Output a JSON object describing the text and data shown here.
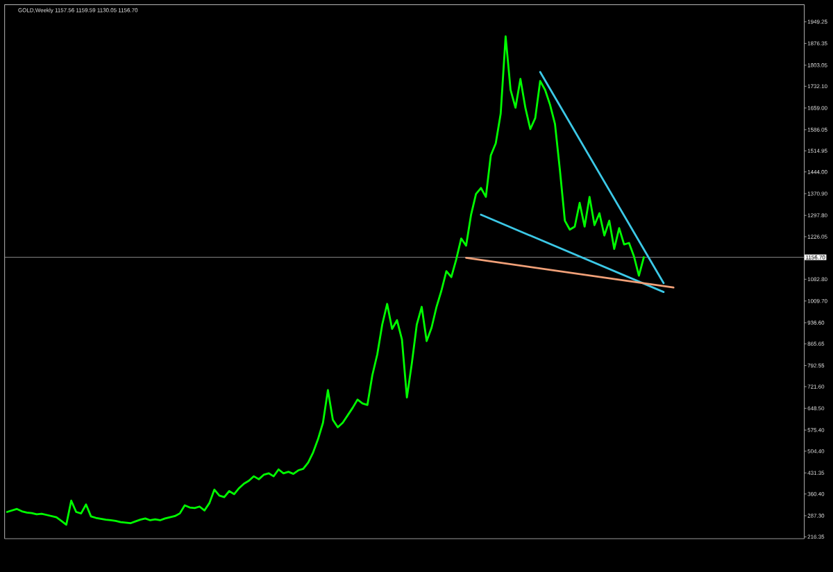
{
  "chart_data": {
    "type": "line",
    "title": "GOLD,Weekly 1157.56 1159.59 1130.05 1156.70",
    "categories": [
      null,
      null,
      null,
      null,
      null,
      null,
      null,
      null,
      null,
      null,
      null,
      null,
      null,
      null,
      null,
      null,
      null,
      null,
      null,
      null,
      null,
      null,
      null,
      null,
      null,
      null,
      null,
      null,
      null,
      null,
      null,
      null,
      null,
      null,
      null,
      null,
      null,
      null,
      null,
      null,
      null,
      null,
      null,
      null,
      null,
      null,
      null,
      null,
      null,
      null,
      null,
      null,
      null,
      null,
      null,
      null,
      null,
      null,
      null,
      null,
      null,
      null,
      null,
      null,
      null,
      null,
      null,
      null,
      null,
      null,
      null,
      null,
      null,
      null,
      null,
      null,
      null,
      null,
      null,
      null,
      null,
      null,
      null,
      null,
      null,
      null,
      null,
      null,
      null,
      null,
      null,
      null,
      null,
      null,
      null,
      null,
      null,
      null,
      null,
      null,
      null,
      null,
      null,
      null,
      null,
      null,
      null,
      null,
      null,
      null,
      null,
      null,
      null,
      null,
      null,
      null,
      null,
      null,
      null,
      null,
      null,
      null,
      null,
      null,
      null,
      null,
      null,
      null,
      null,
      null,
      null,
      null,
      null,
      null,
      null,
      null,
      null,
      null,
      null,
      null,
      null,
      null,
      null,
      null,
      null,
      null,
      null,
      null,
      null,
      null,
      null,
      null,
      null,
      null,
      null,
      null,
      null,
      null,
      null,
      null,
      null,
      null
    ],
    "ylim": [
      210,
      2007
    ],
    "yticks": [
      216.35,
      {
        "value": 287.3,
        "label": "287.30"
      },
      {
        "value": 360.4,
        "label": "360.40"
      },
      431.35,
      {
        "value": 504.4,
        "label": "504.40"
      },
      {
        "value": 575.4,
        "label": "575.40"
      },
      {
        "value": 648.5,
        "label": "648.50"
      },
      {
        "value": 721.6,
        "label": "721.60"
      },
      792.55,
      865.65,
      {
        "value": 936.6,
        "label": "936.60"
      },
      {
        "value": 1009.7,
        "label": "1009.70"
      },
      {
        "value": 1082.8,
        "label": "1082.80"
      },
      1226.05,
      {
        "value": 1297.8,
        "label": "1297.80"
      },
      {
        "value": 1370.9,
        "label": "1370.90"
      },
      {
        "value": 1444.0,
        "label": "1444.00"
      },
      1514.95,
      1586.05,
      {
        "value": 1659.0,
        "label": "1659.00"
      },
      {
        "value": 1732.1,
        "label": "1732.10"
      },
      1803.05,
      1876.35,
      1949.25
    ],
    "ref_lines": [
      {
        "axis": "y",
        "value": 1156.7,
        "label": "1156.70",
        "color": "#8c8c8c"
      }
    ],
    "series": [
      {
        "color": "#00ff00",
        "values": [
          300,
          305,
          310,
          302,
          298,
          296,
          292,
          294,
          290,
          286,
          282,
          270,
          257,
          338,
          300,
          295,
          325,
          285,
          280,
          277,
          274,
          272,
          270,
          266,
          264,
          262,
          268,
          274,
          278,
          272,
          275,
          272,
          278,
          282,
          286,
          295,
          322,
          315,
          313,
          318,
          305,
          330,
          375,
          355,
          350,
          370,
          360,
          380,
          395,
          405,
          420,
          410,
          425,
          430,
          420,
          443,
          430,
          435,
          428,
          440,
          445,
          466,
          500,
          545,
          600,
          710,
          610,
          585,
          600,
          625,
          650,
          678,
          665,
          660,
          760,
          830,
          930,
          1000,
          916,
          945,
          880,
          685,
          800,
          930,
          990,
          875,
          920,
          990,
          1045,
          1110,
          1090,
          1150,
          1220,
          1196,
          1300,
          1370,
          1390,
          1360,
          1500,
          1540,
          1640,
          1900,
          1720,
          1660,
          1757,
          1660,
          1588,
          1625,
          1750,
          1720,
          1670,
          1605,
          1450,
          1280,
          1250,
          1260,
          1340,
          1260,
          1360,
          1265,
          1305,
          1230,
          1280,
          1185,
          1255,
          1200,
          1205,
          1160,
          1095,
          1157,
          null,
          null,
          null,
          null,
          null,
          null,
          null,
          null,
          null,
          null,
          null,
          null,
          null,
          null,
          null,
          null,
          null,
          null,
          null,
          null,
          null,
          null,
          null,
          null,
          null,
          null,
          null,
          null,
          null,
          null,
          null,
          null
        ]
      },
      {
        "type": "line",
        "color": "#3cc8e6",
        "values": [
          null,
          null,
          null,
          null,
          null,
          null,
          null,
          null,
          null,
          null,
          null,
          null,
          null,
          null,
          null,
          null,
          null,
          null,
          null,
          null,
          null,
          null,
          null,
          null,
          null,
          null,
          null,
          null,
          null,
          null,
          null,
          null,
          null,
          null,
          null,
          null,
          null,
          null,
          null,
          null,
          null,
          null,
          null,
          null,
          null,
          null,
          null,
          null,
          null,
          null,
          null,
          null,
          null,
          null,
          null,
          null,
          null,
          null,
          null,
          null,
          null,
          null,
          null,
          null,
          null,
          null,
          null,
          null,
          null,
          null,
          null,
          null,
          null,
          null,
          null,
          null,
          null,
          null,
          null,
          null,
          null,
          null,
          null,
          null,
          null,
          null,
          null,
          null,
          null,
          null,
          null,
          null,
          null,
          null,
          null,
          null,
          null,
          null,
          null,
          null,
          null,
          null,
          null,
          null,
          null,
          null,
          null,
          null,
          1780,
          null,
          null,
          null,
          null,
          null,
          null,
          null,
          null,
          null,
          null,
          null,
          null,
          null,
          null,
          null,
          null,
          null,
          null,
          null,
          null,
          null,
          null,
          null,
          null,
          1070,
          null,
          null,
          null,
          null,
          null,
          null,
          null,
          null,
          null,
          null,
          null,
          null,
          null,
          null,
          null,
          null,
          null,
          null,
          null,
          null,
          null,
          null,
          null,
          null,
          null,
          null,
          null,
          null
        ]
      },
      {
        "type": "line",
        "color": "#3cc8e6",
        "values": [
          null,
          null,
          null,
          null,
          null,
          null,
          null,
          null,
          null,
          null,
          null,
          null,
          null,
          null,
          null,
          null,
          null,
          null,
          null,
          null,
          null,
          null,
          null,
          null,
          null,
          null,
          null,
          null,
          null,
          null,
          null,
          null,
          null,
          null,
          null,
          null,
          null,
          null,
          null,
          null,
          null,
          null,
          null,
          null,
          null,
          null,
          null,
          null,
          null,
          null,
          null,
          null,
          null,
          null,
          null,
          null,
          null,
          null,
          null,
          null,
          null,
          null,
          null,
          null,
          null,
          null,
          null,
          null,
          null,
          null,
          null,
          null,
          null,
          null,
          null,
          null,
          null,
          null,
          null,
          null,
          null,
          null,
          null,
          null,
          null,
          null,
          null,
          null,
          null,
          null,
          null,
          null,
          null,
          null,
          null,
          null,
          1300,
          null,
          null,
          null,
          null,
          null,
          null,
          null,
          null,
          null,
          null,
          null,
          null,
          null,
          null,
          null,
          null,
          null,
          null,
          null,
          null,
          null,
          null,
          null,
          null,
          null,
          null,
          null,
          null,
          null,
          null,
          null,
          null,
          null,
          null,
          null,
          null,
          1040,
          null,
          null,
          null,
          null,
          null,
          null,
          null,
          null,
          null,
          null,
          null,
          null,
          null,
          null,
          null,
          null,
          null,
          null,
          null,
          null,
          null,
          null,
          null,
          null,
          null,
          null,
          null,
          null
        ]
      },
      {
        "type": "line",
        "color": "#f0a078",
        "values": [
          null,
          null,
          null,
          null,
          null,
          null,
          null,
          null,
          null,
          null,
          null,
          null,
          null,
          null,
          null,
          null,
          null,
          null,
          null,
          null,
          null,
          null,
          null,
          null,
          null,
          null,
          null,
          null,
          null,
          null,
          null,
          null,
          null,
          null,
          null,
          null,
          null,
          null,
          null,
          null,
          null,
          null,
          null,
          null,
          null,
          null,
          null,
          null,
          null,
          null,
          null,
          null,
          null,
          null,
          null,
          null,
          null,
          null,
          null,
          null,
          null,
          null,
          null,
          null,
          null,
          null,
          null,
          null,
          null,
          null,
          null,
          null,
          null,
          null,
          null,
          null,
          null,
          null,
          null,
          null,
          null,
          null,
          null,
          null,
          null,
          null,
          null,
          null,
          null,
          null,
          null,
          null,
          null,
          1155,
          null,
          null,
          null,
          null,
          null,
          null,
          null,
          null,
          null,
          null,
          null,
          null,
          null,
          null,
          null,
          null,
          null,
          null,
          null,
          null,
          null,
          null,
          null,
          null,
          null,
          null,
          null,
          null,
          null,
          null,
          null,
          null,
          null,
          null,
          null,
          null,
          null,
          null,
          null,
          null,
          null,
          1055,
          null,
          null,
          null,
          null,
          null,
          null,
          null,
          null,
          null,
          null,
          null,
          null,
          null,
          null,
          null,
          null,
          null,
          null,
          null,
          null,
          null,
          null,
          null,
          null,
          null,
          null
        ]
      }
    ]
  }
}
